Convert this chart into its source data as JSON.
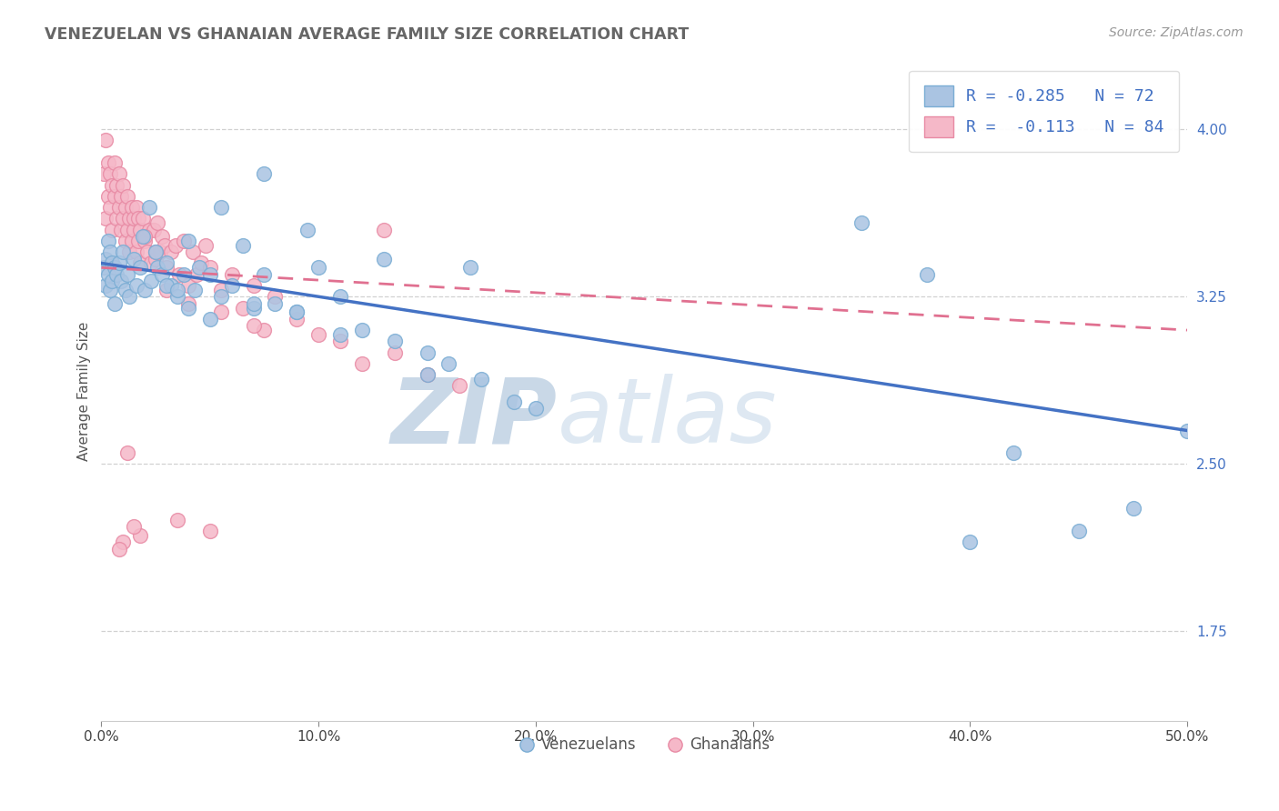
{
  "title": "VENEZUELAN VS GHANAIAN AVERAGE FAMILY SIZE CORRELATION CHART",
  "source_text": "Source: ZipAtlas.com",
  "ylabel": "Average Family Size",
  "xlim": [
    0.0,
    0.5
  ],
  "ylim": [
    1.35,
    4.3
  ],
  "yticks": [
    1.75,
    2.5,
    3.25,
    4.0
  ],
  "xticks": [
    0.0,
    0.1,
    0.2,
    0.3,
    0.4,
    0.5
  ],
  "xtick_labels": [
    "0.0%",
    "10.0%",
    "20.0%",
    "30.0%",
    "40.0%",
    "50.0%"
  ],
  "blue_color": "#aac4e2",
  "blue_edge": "#7aadd4",
  "pink_color": "#f5b8c8",
  "pink_edge": "#e88aa4",
  "blue_line_color": "#4472c4",
  "pink_line_color": "#e07090",
  "R_blue": -0.285,
  "N_blue": 72,
  "R_pink": -0.113,
  "N_pink": 84,
  "watermark": "ZIPatlas",
  "watermark_color": "#ccd8ea",
  "legend_label_blue": "Venezuelans",
  "legend_label_pink": "Ghanaians",
  "background_color": "#ffffff",
  "grid_color": "#cccccc",
  "blue_scatter_x": [
    0.001,
    0.002,
    0.002,
    0.003,
    0.003,
    0.004,
    0.004,
    0.005,
    0.005,
    0.006,
    0.006,
    0.007,
    0.008,
    0.009,
    0.01,
    0.011,
    0.012,
    0.013,
    0.015,
    0.016,
    0.018,
    0.019,
    0.02,
    0.022,
    0.023,
    0.025,
    0.026,
    0.028,
    0.03,
    0.032,
    0.035,
    0.038,
    0.04,
    0.043,
    0.045,
    0.05,
    0.055,
    0.06,
    0.065,
    0.07,
    0.075,
    0.08,
    0.09,
    0.1,
    0.11,
    0.12,
    0.135,
    0.15,
    0.16,
    0.175,
    0.19,
    0.03,
    0.035,
    0.05,
    0.07,
    0.09,
    0.11,
    0.15,
    0.2,
    0.04,
    0.055,
    0.075,
    0.095,
    0.13,
    0.17,
    0.35,
    0.38,
    0.4,
    0.42,
    0.45,
    0.475,
    0.5
  ],
  "blue_scatter_y": [
    3.38,
    3.42,
    3.3,
    3.5,
    3.35,
    3.45,
    3.28,
    3.4,
    3.32,
    3.38,
    3.22,
    3.35,
    3.4,
    3.32,
    3.45,
    3.28,
    3.35,
    3.25,
    3.42,
    3.3,
    3.38,
    3.52,
    3.28,
    3.65,
    3.32,
    3.45,
    3.38,
    3.35,
    3.4,
    3.3,
    3.25,
    3.35,
    3.2,
    3.28,
    3.38,
    3.15,
    3.25,
    3.3,
    3.48,
    3.2,
    3.35,
    3.22,
    3.18,
    3.38,
    3.25,
    3.1,
    3.05,
    3.0,
    2.95,
    2.88,
    2.78,
    3.3,
    3.28,
    3.35,
    3.22,
    3.18,
    3.08,
    2.9,
    2.75,
    3.5,
    3.65,
    3.8,
    3.55,
    3.42,
    3.38,
    3.58,
    3.35,
    2.15,
    2.55,
    2.2,
    2.3,
    2.65
  ],
  "pink_scatter_x": [
    0.001,
    0.002,
    0.002,
    0.003,
    0.003,
    0.004,
    0.004,
    0.005,
    0.005,
    0.006,
    0.006,
    0.007,
    0.007,
    0.008,
    0.008,
    0.009,
    0.009,
    0.01,
    0.01,
    0.011,
    0.011,
    0.012,
    0.012,
    0.013,
    0.013,
    0.014,
    0.014,
    0.015,
    0.015,
    0.016,
    0.016,
    0.017,
    0.017,
    0.018,
    0.018,
    0.019,
    0.02,
    0.021,
    0.022,
    0.023,
    0.024,
    0.025,
    0.026,
    0.027,
    0.028,
    0.029,
    0.03,
    0.032,
    0.034,
    0.036,
    0.038,
    0.04,
    0.042,
    0.044,
    0.046,
    0.048,
    0.05,
    0.055,
    0.06,
    0.065,
    0.07,
    0.075,
    0.08,
    0.09,
    0.1,
    0.11,
    0.12,
    0.135,
    0.15,
    0.165,
    0.03,
    0.04,
    0.055,
    0.07,
    0.018,
    0.025,
    0.015,
    0.01,
    0.008,
    0.012,
    0.02,
    0.035,
    0.05,
    0.13
  ],
  "pink_scatter_y": [
    3.8,
    3.95,
    3.6,
    3.85,
    3.7,
    3.8,
    3.65,
    3.75,
    3.55,
    3.7,
    3.85,
    3.6,
    3.75,
    3.65,
    3.8,
    3.55,
    3.7,
    3.6,
    3.75,
    3.5,
    3.65,
    3.55,
    3.7,
    3.45,
    3.6,
    3.65,
    3.5,
    3.55,
    3.6,
    3.45,
    3.65,
    3.5,
    3.6,
    3.4,
    3.55,
    3.6,
    3.5,
    3.45,
    3.55,
    3.4,
    3.55,
    3.42,
    3.58,
    3.45,
    3.52,
    3.48,
    3.38,
    3.45,
    3.48,
    3.35,
    3.5,
    3.3,
    3.45,
    3.35,
    3.4,
    3.48,
    3.38,
    3.28,
    3.35,
    3.2,
    3.3,
    3.1,
    3.25,
    3.15,
    3.08,
    3.05,
    2.95,
    3.0,
    2.9,
    2.85,
    3.28,
    3.22,
    3.18,
    3.12,
    2.18,
    3.45,
    2.22,
    2.15,
    2.12,
    2.55,
    3.52,
    2.25,
    2.2,
    3.55
  ]
}
